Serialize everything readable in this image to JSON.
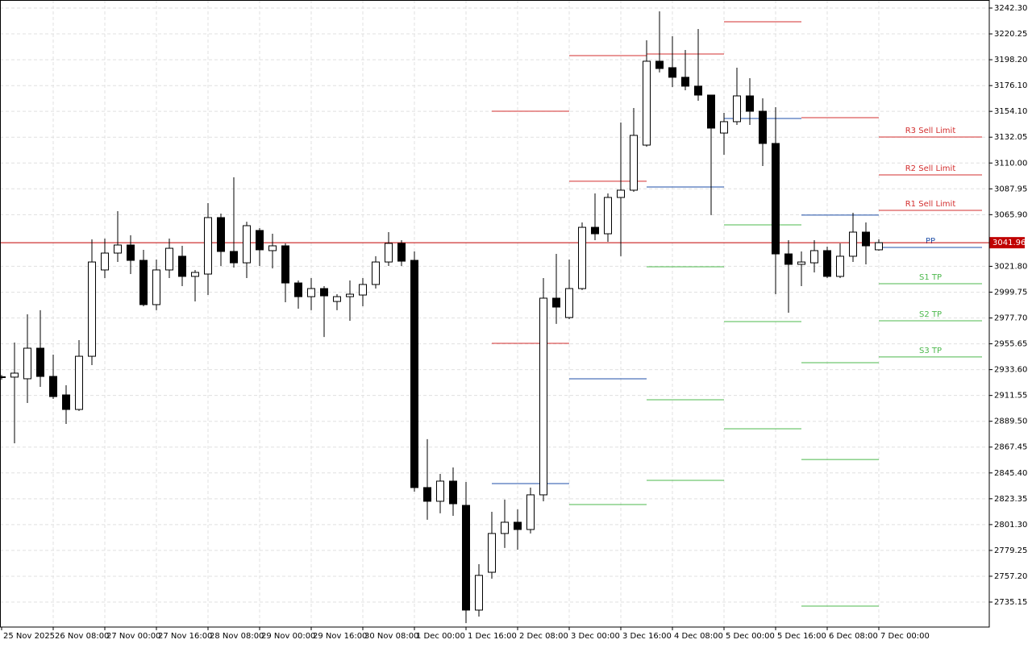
{
  "chart_data": {
    "type": "candlestick",
    "categories": [
      "25 Nov 2025",
      null,
      null,
      null,
      "26 Nov 08:00",
      null,
      null,
      null,
      "27 Nov 00:00",
      null,
      null,
      null,
      "27 Nov 16:00",
      null,
      null,
      null,
      "28 Nov 08:00",
      null,
      null,
      null,
      "29 Nov 00:00",
      null,
      null,
      null,
      "29 Nov 16:00",
      null,
      null,
      null,
      "30 Nov 08:00",
      null,
      null,
      null,
      "1 Dec 00:00",
      null,
      null,
      null,
      "1 Dec 16:00",
      null,
      null,
      null,
      "2 Dec 08:00",
      null,
      null,
      null,
      "3 Dec 00:00",
      null,
      null,
      null,
      "3 Dec 16:00",
      null,
      null,
      null,
      "4 Dec 08:00",
      null,
      null,
      null,
      "5 Dec 00:00",
      null,
      null,
      null,
      "5 Dec 16:00",
      null,
      null,
      null,
      "6 Dec 08:00",
      null,
      null,
      null,
      "7 Dec 00:00"
    ],
    "open": [
      2927,
      2927.2,
      2925.8,
      2951.9,
      2927.8,
      2912,
      2899.6,
      2945,
      3018.7,
      3033.1,
      3040,
      3026.9,
      2989.1,
      3018.7,
      3030.4,
      3013.2,
      3015.2,
      3063.4,
      3034.5,
      3024.8,
      3052.4,
      3035.2,
      3039.3,
      3007.6,
      2995.9,
      3002.8,
      2991.8,
      2995.9,
      2997.3,
      3006.3,
      3025.5,
      3041.4,
      3026.9,
      2832.9,
      2821.2,
      2838.4,
      2817.7,
      2728.3,
      2760.6,
      2793.7,
      2803.3,
      2797.1,
      2826.7,
      2994.6,
      2978.1,
      3002.8,
      3055.1,
      3049.6,
      3080.6,
      3086.8,
      3125.3,
      3196.9,
      3191.4,
      3183.2,
      3175.6,
      3168,
      3135.6,
      3145.3,
      3167.3,
      3154.2,
      3126.7,
      3032.4,
      3023.5,
      3024.8,
      3035.2,
      3013.2,
      3030.4,
      3051,
      3035.9
    ],
    "high": [
      2929,
      2956.7,
      2980.8,
      2984.3,
      2946.4,
      2920.3,
      2958.8,
      3044.8,
      3045.5,
      3068.9,
      3048.3,
      3035.9,
      3027.6,
      3045.5,
      3039.3,
      3018.7,
      3075.8,
      3066.8,
      3097.8,
      3059.9,
      3054.4,
      3049.6,
      3041.4,
      3009.7,
      3011.8,
      3004.9,
      2998,
      3009.7,
      3011.8,
      3030.4,
      3051,
      3044.1,
      3034.5,
      2874.2,
      2844.6,
      2850.1,
      2837.7,
      2767.5,
      2812.2,
      2822.6,
      2814.3,
      2832.9,
      3011.8,
      3032.4,
      3027.6,
      3059.3,
      3084,
      3084,
      3144.6,
      3157,
      3214.8,
      3239.5,
      3218.2,
      3206.5,
      3224.4,
      3168,
      3152.8,
      3191.4,
      3182.4,
      3165.2,
      3157.7,
      3044.1,
      3034.5,
      3044.1,
      3038.6,
      3041.4,
      3067.5,
      3059.3,
      3044.8
    ],
    "low": [
      2925,
      2870.7,
      2905.1,
      2918.9,
      2908.6,
      2887.2,
      2898.3,
      2937.5,
      3011.8,
      3025.5,
      3015.2,
      2987.7,
      2984.3,
      3011.8,
      3004.9,
      2991.8,
      2997.3,
      3022.1,
      3020.7,
      3011.8,
      3022.1,
      3020,
      2991.1,
      2985.6,
      2984.3,
      2961.5,
      2984.3,
      2975.3,
      2987.7,
      3002.8,
      3022.1,
      3022.1,
      2829.4,
      2805.4,
      2810.9,
      2808.8,
      2717.3,
      2722.8,
      2755.1,
      2781.3,
      2779.9,
      2793.7,
      2821.2,
      2972.6,
      2976.7,
      3001.5,
      3044.1,
      3042.75,
      3030.4,
      3085.4,
      3123.9,
      3187.3,
      3174.9,
      3172.1,
      3163.2,
      3065.5,
      3117.1,
      3142.5,
      3142.5,
      3107.4,
      2998,
      2982.2,
      3004.9,
      3016.6,
      3011.8,
      3011.8,
      3025.5,
      3023.5,
      3035.2
    ],
    "close": [
      2927.5,
      2930.6,
      2951.9,
      2927.8,
      2910.6,
      2899.6,
      2945,
      3025.5,
      3033.1,
      3040,
      3026.9,
      2989.1,
      3018.7,
      3037.2,
      3013.2,
      3016.6,
      3063.4,
      3034.5,
      3024.8,
      3056.5,
      3035.9,
      3039.3,
      3007.6,
      2995.9,
      3002.8,
      2996.6,
      2995.9,
      2998,
      3006.3,
      3025.5,
      3041.4,
      3026.2,
      2832.9,
      2821.2,
      2838.4,
      2819.1,
      2728.3,
      2757.9,
      2793.7,
      2803.3,
      2797.1,
      2826.7,
      2994.6,
      2987,
      3002.8,
      3055.1,
      3049.6,
      3080.6,
      3086.8,
      3133.6,
      3196.9,
      3190.7,
      3183.2,
      3175.6,
      3168,
      3139.8,
      3145.3,
      3167.3,
      3154.2,
      3126.7,
      3032.4,
      3023.5,
      3025.5,
      3035.2,
      3013.2,
      3030.4,
      3051,
      3039.3,
      3041.96
    ],
    "up_color": "#ffffff",
    "down_color": "#000000",
    "ylim": [
      2713.82,
      3249.18
    ],
    "yticks": [
      {
        "value": 3242.3,
        "label": "3242.30"
      },
      {
        "value": 3220.25,
        "label": "3220.25"
      },
      {
        "value": 3198.2,
        "label": "3198.20"
      },
      {
        "value": 3176.1,
        "label": "3176.10"
      },
      {
        "value": 3154.1,
        "label": "3154.10"
      },
      {
        "value": 3132.05,
        "label": "3132.05"
      },
      {
        "value": 3110.0,
        "label": "3110.00"
      },
      {
        "value": 3087.95,
        "label": "3087.95"
      },
      {
        "value": 3065.9,
        "label": "3065.90"
      },
      {
        "value": 3021.8,
        "label": "3021.80"
      },
      {
        "value": 2999.75,
        "label": "2999.75"
      },
      {
        "value": 2977.7,
        "label": "2977.70"
      },
      {
        "value": 2955.65,
        "label": "2955.65"
      },
      {
        "value": 2933.6,
        "label": "2933.60"
      },
      {
        "value": 2911.55,
        "label": "2911.55"
      },
      {
        "value": 2889.5,
        "label": "2889.50"
      },
      {
        "value": 2867.45,
        "label": "2867.45"
      },
      {
        "value": 2845.4,
        "label": "2845.40"
      },
      {
        "value": 2823.35,
        "label": "2823.35"
      },
      {
        "value": 2801.3,
        "label": "2801.30"
      },
      {
        "value": 2779.25,
        "label": "2779.25"
      },
      {
        "value": 2757.2,
        "label": "2757.20"
      },
      {
        "value": 2735.15,
        "label": "2735.15"
      }
    ],
    "grid": true,
    "current_price": 3041.96,
    "current_price_color": "#c00000",
    "levels": [
      {
        "x": [
          38,
          44
        ],
        "value": 3154.2,
        "color": "#d32f2f"
      },
      {
        "x": [
          38,
          44
        ],
        "value": 2956.0,
        "color": "#d32f2f"
      },
      {
        "x": [
          38,
          44
        ],
        "value": 2836.3,
        "color": "#1f4fa8"
      },
      {
        "x": [
          44,
          50
        ],
        "value": 3201.7,
        "color": "#d32f2f"
      },
      {
        "x": [
          44,
          50
        ],
        "value": 3094.4,
        "color": "#d32f2f"
      },
      {
        "x": [
          44,
          50
        ],
        "value": 2925.8,
        "color": "#1f4fa8"
      },
      {
        "x": [
          44,
          50
        ],
        "value": 2818.4,
        "color": "#4cb84c"
      },
      {
        "x": [
          50,
          56
        ],
        "value": 3203.1,
        "color": "#d32f2f"
      },
      {
        "x": [
          50,
          56
        ],
        "value": 3089.5,
        "color": "#1f4fa8"
      },
      {
        "x": [
          50,
          56
        ],
        "value": 3021.4,
        "color": "#4cb84c"
      },
      {
        "x": [
          50,
          56
        ],
        "value": 2907.9,
        "color": "#4cb84c"
      },
      {
        "x": [
          50,
          56
        ],
        "value": 2839.1,
        "color": "#4cb84c"
      },
      {
        "x": [
          56,
          62
        ],
        "value": 3230.6,
        "color": "#d32f2f"
      },
      {
        "x": [
          56,
          62
        ],
        "value": 3148.0,
        "color": "#1f4fa8"
      },
      {
        "x": [
          56,
          62
        ],
        "value": 3057.2,
        "color": "#4cb84c"
      },
      {
        "x": [
          56,
          62
        ],
        "value": 2974.6,
        "color": "#4cb84c"
      },
      {
        "x": [
          56,
          62
        ],
        "value": 2883.1,
        "color": "#4cb84c"
      },
      {
        "x": [
          62,
          68
        ],
        "value": 3148.7,
        "color": "#d32f2f"
      },
      {
        "x": [
          62,
          68
        ],
        "value": 3065.5,
        "color": "#1f4fa8"
      },
      {
        "x": [
          62,
          68
        ],
        "value": 2939.5,
        "color": "#4cb84c"
      },
      {
        "x": [
          62,
          68
        ],
        "value": 2856.9,
        "color": "#4cb84c"
      },
      {
        "x": [
          62,
          68
        ],
        "value": 2731.7,
        "color": "#4cb84c"
      },
      {
        "x": [
          68,
          76
        ],
        "value": 3132.2,
        "color": "#d32f2f",
        "label": "R3 Sell Limit"
      },
      {
        "x": [
          68,
          76
        ],
        "value": 3099.9,
        "color": "#d32f2f",
        "label": "R2 Sell Limit"
      },
      {
        "x": [
          68,
          76
        ],
        "value": 3069.6,
        "color": "#d32f2f",
        "label": "R1 Sell Limit"
      },
      {
        "x": [
          68,
          76
        ],
        "value": 3037.9,
        "color": "#1f4fa8",
        "label": "PP"
      },
      {
        "x": [
          68,
          76
        ],
        "value": 3007.0,
        "color": "#4cb84c",
        "label": "S1 TP"
      },
      {
        "x": [
          68,
          76
        ],
        "value": 2975.3,
        "color": "#4cb84c",
        "label": "S2 TP"
      },
      {
        "x": [
          68,
          76
        ],
        "value": 2944.4,
        "color": "#4cb84c",
        "label": "S3 TP"
      }
    ]
  }
}
